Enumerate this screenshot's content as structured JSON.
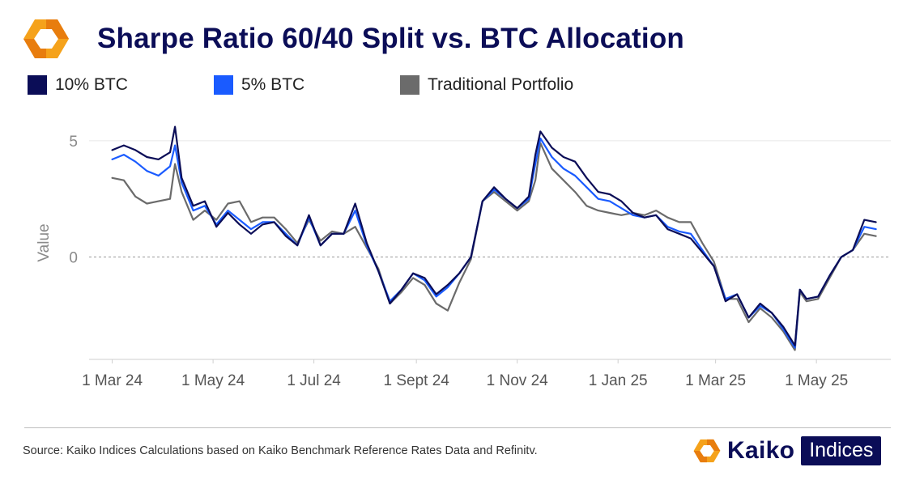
{
  "header": {
    "logo_icon": "kaiko-hexagon-logo-icon",
    "title": "Sharpe Ratio 60/40 Split vs. BTC Allocation"
  },
  "legend": [
    {
      "label": "10% BTC",
      "color": "#0b0d57"
    },
    {
      "label": "5% BTC",
      "color": "#1a5bff"
    },
    {
      "label": "Traditional Portfolio",
      "color": "#6b6b6b"
    }
  ],
  "footer": {
    "source": "Source: Kaiko Indices Calculations based on Kaiko Benchmark Reference Rates Data and Refinitv.",
    "brand_name": "Kaiko",
    "brand_badge": "Indices",
    "brand_logo_icon": "kaiko-hexagon-logo-icon"
  },
  "colors": {
    "logo_orange": "#f5a21b",
    "logo_orange_dark": "#e87d0e",
    "brand_navy": "#0b0d57"
  },
  "chart_data": {
    "type": "line",
    "ylabel": "Value",
    "xlabel": "",
    "ylim": [
      -4.4,
      5.9
    ],
    "xlim": [
      "2024-02-16",
      "2025-06-15"
    ],
    "yticks": [
      0,
      5
    ],
    "xticks": [
      {
        "date": "2024-03-01",
        "label": "1 Mar 24"
      },
      {
        "date": "2024-05-01",
        "label": "1 May 24"
      },
      {
        "date": "2024-07-01",
        "label": "1 Jul 24"
      },
      {
        "date": "2024-09-01",
        "label": "1 Sept 24"
      },
      {
        "date": "2024-11-01",
        "label": "1 Nov 24"
      },
      {
        "date": "2025-01-01",
        "label": "1 Jan 25"
      },
      {
        "date": "2025-03-01",
        "label": "1 Mar 25"
      },
      {
        "date": "2025-05-01",
        "label": "1 May 25"
      }
    ],
    "reference_line": 0,
    "grid": "horizontal",
    "x": [
      "2024-03-01",
      "2024-03-08",
      "2024-03-15",
      "2024-03-22",
      "2024-03-29",
      "2024-04-05",
      "2024-04-08",
      "2024-04-12",
      "2024-04-19",
      "2024-04-26",
      "2024-05-03",
      "2024-05-10",
      "2024-05-17",
      "2024-05-24",
      "2024-05-31",
      "2024-06-07",
      "2024-06-14",
      "2024-06-21",
      "2024-06-28",
      "2024-07-05",
      "2024-07-12",
      "2024-07-19",
      "2024-07-26",
      "2024-08-02",
      "2024-08-09",
      "2024-08-16",
      "2024-08-23",
      "2024-08-30",
      "2024-09-06",
      "2024-09-13",
      "2024-09-20",
      "2024-09-27",
      "2024-10-04",
      "2024-10-11",
      "2024-10-18",
      "2024-10-25",
      "2024-11-01",
      "2024-11-08",
      "2024-11-12",
      "2024-11-15",
      "2024-11-22",
      "2024-11-29",
      "2024-12-06",
      "2024-12-13",
      "2024-12-20",
      "2024-12-27",
      "2025-01-03",
      "2025-01-10",
      "2025-01-17",
      "2025-01-24",
      "2025-01-31",
      "2025-02-07",
      "2025-02-14",
      "2025-02-21",
      "2025-02-28",
      "2025-03-07",
      "2025-03-14",
      "2025-03-21",
      "2025-03-28",
      "2025-04-04",
      "2025-04-11",
      "2025-04-18",
      "2025-04-21",
      "2025-04-25",
      "2025-05-02",
      "2025-05-09",
      "2025-05-16",
      "2025-05-23",
      "2025-05-30",
      "2025-06-06"
    ],
    "series": [
      {
        "name": "10% BTC",
        "color": "#0b0d57",
        "values": [
          4.6,
          4.8,
          4.6,
          4.3,
          4.2,
          4.5,
          5.6,
          3.4,
          2.2,
          2.4,
          1.3,
          1.9,
          1.4,
          1.0,
          1.4,
          1.5,
          0.9,
          0.5,
          1.8,
          0.5,
          1.0,
          1.0,
          2.3,
          0.6,
          -0.6,
          -2.0,
          -1.4,
          -0.7,
          -0.9,
          -1.6,
          -1.2,
          -0.7,
          0.0,
          2.4,
          3.0,
          2.5,
          2.1,
          2.6,
          4.4,
          5.4,
          4.7,
          4.3,
          4.1,
          3.4,
          2.8,
          2.7,
          2.4,
          1.9,
          1.7,
          1.8,
          1.2,
          1.0,
          0.8,
          0.2,
          -0.4,
          -1.9,
          -1.6,
          -2.6,
          -2.0,
          -2.4,
          -3.0,
          -3.8,
          -1.4,
          -1.8,
          -1.7,
          -0.8,
          0.0,
          0.3,
          1.6,
          1.5
        ]
      },
      {
        "name": "5% BTC",
        "color": "#1a5bff",
        "values": [
          4.2,
          4.4,
          4.1,
          3.7,
          3.5,
          3.9,
          4.8,
          3.2,
          2.0,
          2.2,
          1.4,
          2.0,
          1.6,
          1.2,
          1.5,
          1.5,
          1.0,
          0.5,
          1.7,
          0.5,
          1.0,
          1.0,
          2.0,
          0.5,
          -0.6,
          -1.9,
          -1.4,
          -0.7,
          -1.0,
          -1.7,
          -1.3,
          -0.7,
          0.0,
          2.4,
          2.9,
          2.5,
          2.1,
          2.5,
          4.0,
          5.1,
          4.3,
          3.8,
          3.5,
          3.0,
          2.5,
          2.4,
          2.1,
          1.8,
          1.7,
          1.8,
          1.3,
          1.1,
          1.0,
          0.3,
          -0.4,
          -1.8,
          -1.6,
          -2.6,
          -2.1,
          -2.4,
          -3.1,
          -3.9,
          -1.4,
          -1.8,
          -1.7,
          -0.8,
          0.0,
          0.3,
          1.3,
          1.2
        ]
      },
      {
        "name": "Traditional Portfolio",
        "color": "#6b6b6b",
        "values": [
          3.4,
          3.3,
          2.6,
          2.3,
          2.4,
          2.5,
          4.0,
          2.8,
          1.6,
          2.0,
          1.6,
          2.3,
          2.4,
          1.5,
          1.7,
          1.7,
          1.2,
          0.6,
          1.6,
          0.7,
          1.1,
          1.0,
          1.3,
          0.4,
          -0.5,
          -2.0,
          -1.5,
          -0.9,
          -1.2,
          -2.0,
          -2.3,
          -1.1,
          -0.1,
          2.4,
          2.8,
          2.4,
          2.0,
          2.4,
          3.3,
          4.9,
          3.8,
          3.3,
          2.8,
          2.2,
          2.0,
          1.9,
          1.8,
          1.9,
          1.8,
          2.0,
          1.7,
          1.5,
          1.5,
          0.6,
          -0.2,
          -1.8,
          -1.8,
          -2.8,
          -2.2,
          -2.6,
          -3.2,
          -4.0,
          -1.5,
          -1.9,
          -1.8,
          -0.9,
          0.0,
          0.3,
          1.0,
          0.9
        ]
      }
    ]
  }
}
